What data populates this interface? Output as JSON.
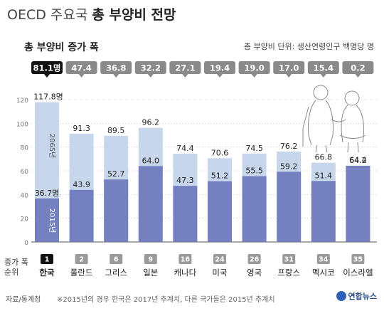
{
  "header": {
    "title_prefix": "OECD 주요국",
    "title_main": "총 부양비 전망",
    "subtitle": "총 부양비 증가 폭",
    "unit": "총 부양비 단위: 생산연령인구 백명당 명"
  },
  "rank_label": "증가 폭\n순위",
  "source": "자료/통계청",
  "note": "※2015년의 경우 한국은 2017년 추계치, 다른 국가들은 2015년 추계치",
  "logo": "연합뉴스",
  "colors": {
    "bar_2065": "#c7d6ea",
    "bar_2015": "#7480bf",
    "badge_highlight": "#111111",
    "badge_default": "#8a8a8a"
  },
  "chart_data": {
    "type": "bar",
    "categories": [
      "한국",
      "폴란드",
      "그리스",
      "일본",
      "캐나다",
      "미국",
      "영국",
      "프랑스",
      "멕시코",
      "이스라엘"
    ],
    "ranks": [
      "1",
      "2",
      "6",
      "9",
      "16",
      "24",
      "26",
      "31",
      "34",
      "35"
    ],
    "increase": [
      "81.1명",
      "47.4",
      "36.8",
      "32.2",
      "27.1",
      "19.4",
      "19.0",
      "17.0",
      "15.4",
      "0.2"
    ],
    "series": [
      {
        "name": "2065년",
        "values": [
          117.8,
          91.3,
          89.5,
          96.2,
          74.4,
          70.6,
          74.5,
          76.2,
          66.8,
          64.4
        ],
        "labels": [
          "117.8명",
          "91.3",
          "89.5",
          "96.2",
          "74.4",
          "70.6",
          "74.5",
          "76.2",
          "66.8",
          "64.4"
        ]
      },
      {
        "name": "2015년",
        "values": [
          36.7,
          43.9,
          52.7,
          64.0,
          47.3,
          51.2,
          55.5,
          59.2,
          51.4,
          64.2
        ],
        "labels": [
          "36.7명",
          "43.9",
          "52.7",
          "64.0",
          "47.3",
          "51.2",
          "55.5",
          "59.2",
          "51.4",
          "64.2"
        ]
      }
    ],
    "yticks": [
      0,
      20,
      40,
      60,
      80,
      100,
      120
    ],
    "ylim": [
      0,
      120
    ]
  }
}
